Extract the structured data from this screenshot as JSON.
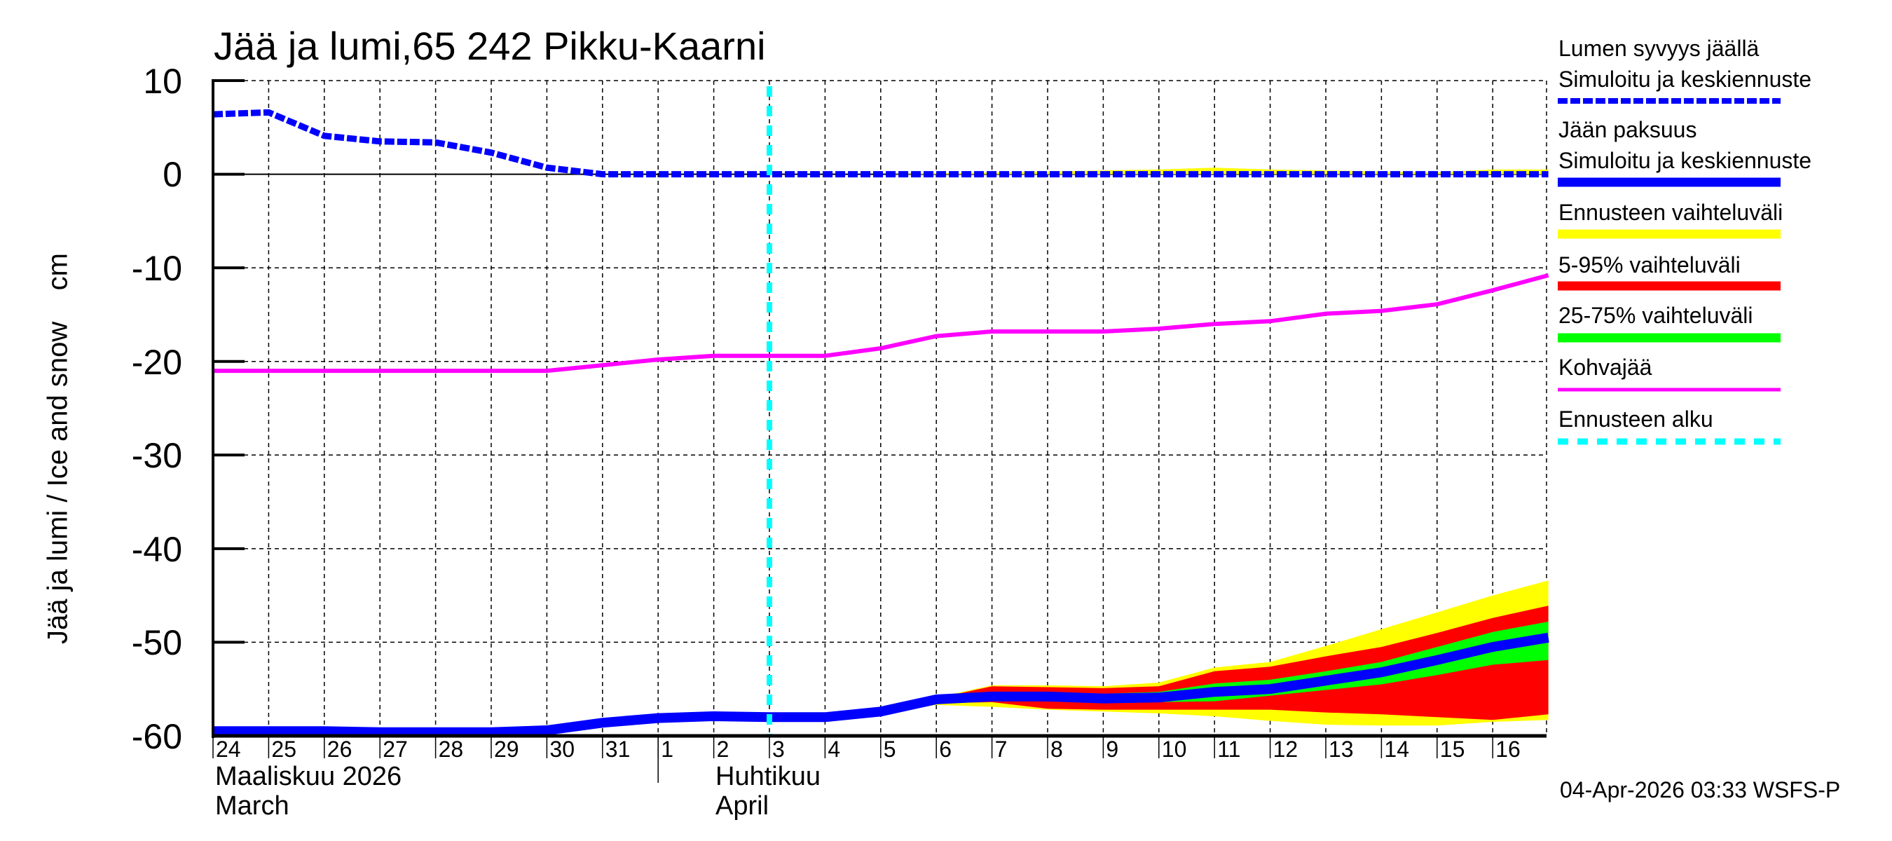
{
  "chart_data": {
    "type": "line",
    "title": "Jää ja lumi,65 242 Pikku-Kaarni",
    "ylabel": "Jää ja lumi / Ice and snow    cm",
    "xlabel": "",
    "ylim": [
      -60,
      10
    ],
    "yticks": [
      10,
      0,
      -10,
      -20,
      -30,
      -40,
      -50,
      -60
    ],
    "grid": true,
    "legend_position": "right",
    "x_tick_labels": [
      "24",
      "25",
      "26",
      "27",
      "28",
      "29",
      "30",
      "31",
      "1",
      "2",
      "3",
      "4",
      "5",
      "6",
      "7",
      "8",
      "9",
      "10",
      "11",
      "12",
      "13",
      "14",
      "15",
      "16"
    ],
    "months": [
      {
        "fi": "Maaliskuu 2026",
        "en": "March",
        "start_index": 0
      },
      {
        "fi": "Huhtikuu",
        "en": "April",
        "start_index": 8
      }
    ],
    "x_dates": [
      "2026-03-24",
      "2026-03-25",
      "2026-03-26",
      "2026-03-27",
      "2026-03-28",
      "2026-03-29",
      "2026-03-30",
      "2026-03-31",
      "2026-04-01",
      "2026-04-02",
      "2026-04-03",
      "2026-04-04",
      "2026-04-05",
      "2026-04-06",
      "2026-04-07",
      "2026-04-08",
      "2026-04-09",
      "2026-04-10",
      "2026-04-11",
      "2026-04-12",
      "2026-04-13",
      "2026-04-14",
      "2026-04-15",
      "2026-04-16",
      "2026-04-17"
    ],
    "forecast_start": "2026-04-03",
    "forecast_start_index": 10,
    "series": [
      {
        "name": "Lumen syvyys jäällä – Simuloitu ja keskiennuste",
        "color": "#0000ff",
        "style": "dotted",
        "values": [
          6.4,
          6.6,
          4.1,
          3.5,
          3.4,
          2.3,
          0.7,
          0.0,
          0.0,
          0.0,
          0.0,
          0.0,
          0.0,
          0.0,
          0.0,
          0.0,
          0.0,
          0.0,
          0.0,
          0.0,
          0.0,
          0.0,
          0.0,
          0.0,
          0.0
        ]
      },
      {
        "name": "Jään paksuus – Simuloitu ja keskiennuste",
        "color": "#0000ff",
        "style": "solid",
        "values": [
          -59.5,
          -59.5,
          -59.5,
          -59.6,
          -59.6,
          -59.6,
          -59.4,
          -58.6,
          -58.1,
          -57.9,
          -58.0,
          -58.0,
          -57.4,
          -56.1,
          -55.8,
          -55.8,
          -56.0,
          -55.9,
          -55.3,
          -55.0,
          -54.1,
          -53.2,
          -51.9,
          -50.5,
          -49.5
        ]
      },
      {
        "name": "Kohvajää",
        "color": "#ff00ff",
        "style": "solid",
        "values": [
          -21.0,
          -21.0,
          -21.0,
          -21.0,
          -21.0,
          -21.0,
          -21.0,
          -20.4,
          -19.8,
          -19.4,
          -19.4,
          -19.4,
          -18.6,
          -17.3,
          -16.8,
          -16.8,
          -16.8,
          -16.5,
          -16.0,
          -15.7,
          -14.9,
          -14.6,
          -13.9,
          -12.4,
          -10.8
        ]
      }
    ],
    "bands": [
      {
        "name": "Ennusteen vaihteluväli",
        "color": "#ffff00",
        "start_index": 10,
        "upper": [
          -58.0,
          -58.0,
          -57.3,
          -55.9,
          -54.6,
          -54.6,
          -54.7,
          -54.3,
          -52.7,
          -52.1,
          -50.4,
          -48.6,
          -46.8,
          -45.0,
          -43.4
        ],
        "lower": [
          -58.0,
          -58.0,
          -57.7,
          -56.7,
          -56.9,
          -57.2,
          -57.4,
          -57.6,
          -57.9,
          -58.4,
          -58.8,
          -58.9,
          -58.9,
          -58.5,
          -58.3
        ]
      },
      {
        "name": "5-95% vaihteluväli",
        "color": "#ff0000",
        "start_index": 10,
        "upper": [
          -58.0,
          -58.0,
          -57.3,
          -56.0,
          -54.7,
          -54.8,
          -54.9,
          -54.7,
          -53.1,
          -52.6,
          -51.5,
          -50.5,
          -49.0,
          -47.4,
          -46.1
        ],
        "lower": [
          -58.0,
          -58.0,
          -57.6,
          -56.5,
          -56.4,
          -57.1,
          -57.2,
          -57.2,
          -57.2,
          -57.2,
          -57.5,
          -57.7,
          -58.0,
          -58.3,
          -57.7
        ]
      },
      {
        "name": "25-75% vaihteluväli",
        "color": "#00ff00",
        "start_index": 10,
        "upper": [
          -58.0,
          -58.0,
          -57.4,
          -56.1,
          -55.6,
          -55.3,
          -55.5,
          -55.3,
          -54.4,
          -54.0,
          -53.1,
          -52.1,
          -50.5,
          -48.9,
          -47.8
        ],
        "lower": [
          -58.0,
          -58.0,
          -57.4,
          -56.1,
          -56.0,
          -56.3,
          -56.5,
          -56.4,
          -56.3,
          -55.7,
          -55.1,
          -54.5,
          -53.5,
          -52.4,
          -51.9
        ]
      },
      {
        "name": "Lumen ennusteen vaihteluväli",
        "color": "#ffff00",
        "start_index": 10,
        "upper": [
          0.0,
          0.0,
          0.0,
          0.1,
          0.2,
          0.3,
          0.4,
          0.5,
          0.7,
          0.5,
          0.4,
          0.3,
          0.2,
          0.5,
          0.5
        ],
        "lower": [
          0,
          0,
          0,
          0,
          0,
          0,
          0,
          0,
          0,
          0,
          0,
          0,
          0,
          0,
          0
        ]
      }
    ]
  },
  "title": "Jää ja lumi,65 242 Pikku-Kaarni",
  "axis": {
    "ylabel": "Jää ja lumi / Ice and snow    cm",
    "yticks": [
      "10",
      "0",
      "-10",
      "-20",
      "-30",
      "-40",
      "-50",
      "-60"
    ],
    "xticks": [
      "24",
      "25",
      "26",
      "27",
      "28",
      "29",
      "30",
      "31",
      "1",
      "2",
      "3",
      "4",
      "5",
      "6",
      "7",
      "8",
      "9",
      "10",
      "11",
      "12",
      "13",
      "14",
      "15",
      "16"
    ],
    "month1_fi": "Maaliskuu 2026",
    "month1_en": "March",
    "month2_fi": "Huhtikuu",
    "month2_en": "April"
  },
  "legend": {
    "snow_title": "Lumen syvyys jäällä",
    "snow_sub": "Simuloitu ja keskiennuste",
    "ice_title": "Jään paksuus",
    "ice_sub": "Simuloitu ja keskiennuste",
    "range": "Ennusteen vaihteluväli",
    "p5_95": "5-95% vaihteluväli",
    "p25_75": "25-75% vaihteluväli",
    "slush": "Kohvajää",
    "forecast_start": "Ennusteen alku",
    "colors": {
      "snow": "#0000ff",
      "ice": "#0000ff",
      "range": "#ffff00",
      "p5_95": "#ff0000",
      "p25_75": "#00ff00",
      "slush": "#ff00ff",
      "forecast_start": "#00ffff"
    }
  },
  "footer": "04-Apr-2026 03:33 WSFS-P"
}
